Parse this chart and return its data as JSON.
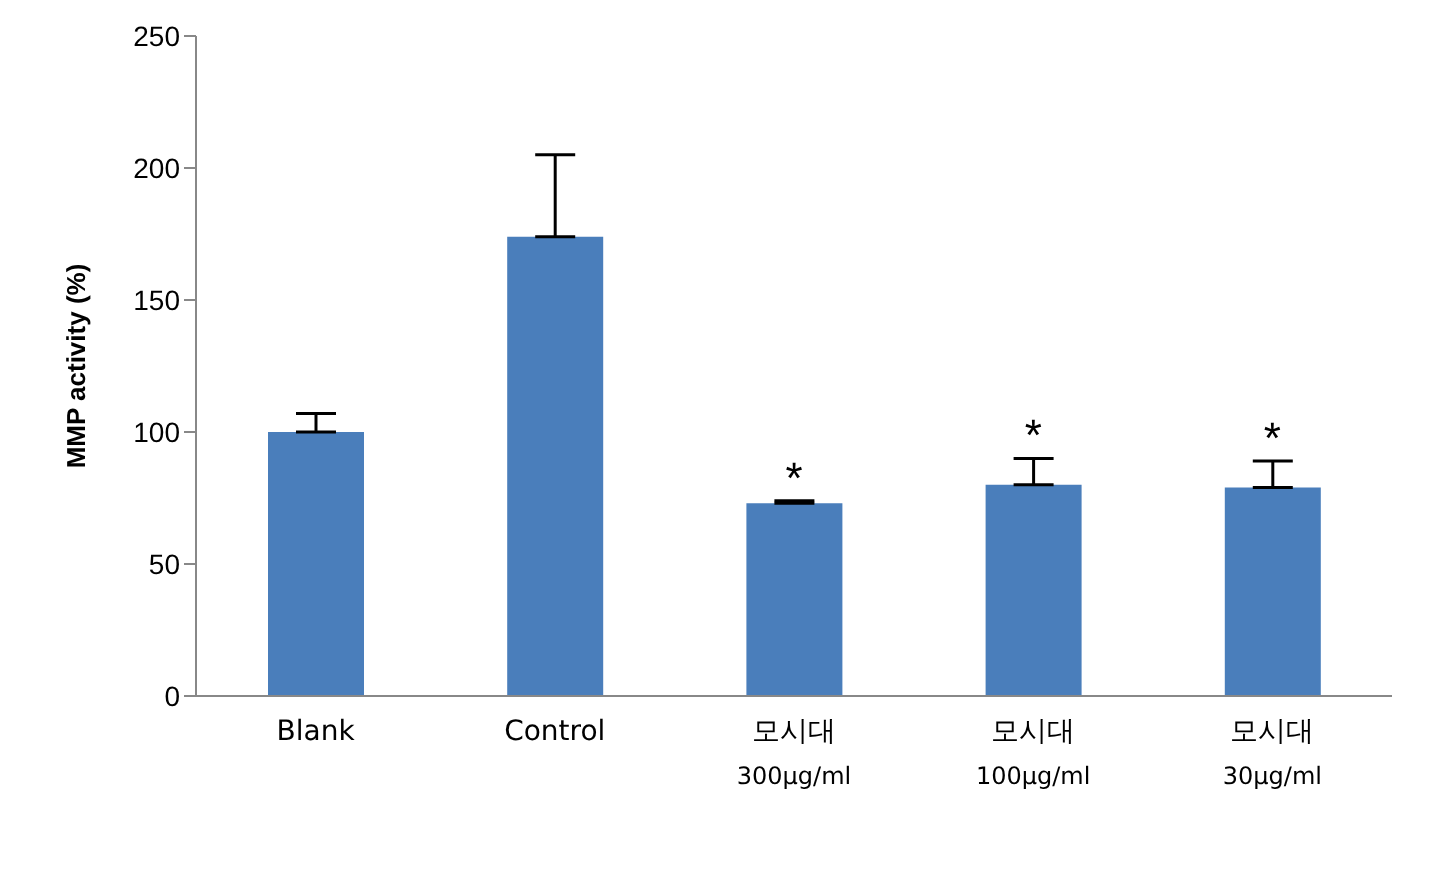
{
  "chart_data": {
    "type": "bar",
    "ylabel": "MMP activity (%)",
    "categories": [
      "Blank",
      "Control",
      "모시대\n300μg/ml",
      "모시대\n100μg/ml",
      "모시대\n30μg/ml"
    ],
    "values": [
      100,
      174,
      73,
      80,
      79
    ],
    "errors": [
      [
        100,
        107
      ],
      [
        174,
        205
      ],
      [
        73,
        74
      ],
      [
        80,
        90
      ],
      [
        79,
        89
      ]
    ],
    "color": "#4a7ebb",
    "ylim": [
      0,
      250
    ],
    "yticks": [
      0,
      50,
      100,
      150,
      200,
      250
    ],
    "grid": false,
    "legend": false,
    "annotations": [
      {
        "text": "*",
        "x": "모시대\n300μg/ml",
        "y": 74
      },
      {
        "text": "*",
        "x": "모시대\n100μg/ml",
        "y": 90
      },
      {
        "text": "*",
        "x": "모시대\n30μg/ml",
        "y": 89
      }
    ]
  }
}
